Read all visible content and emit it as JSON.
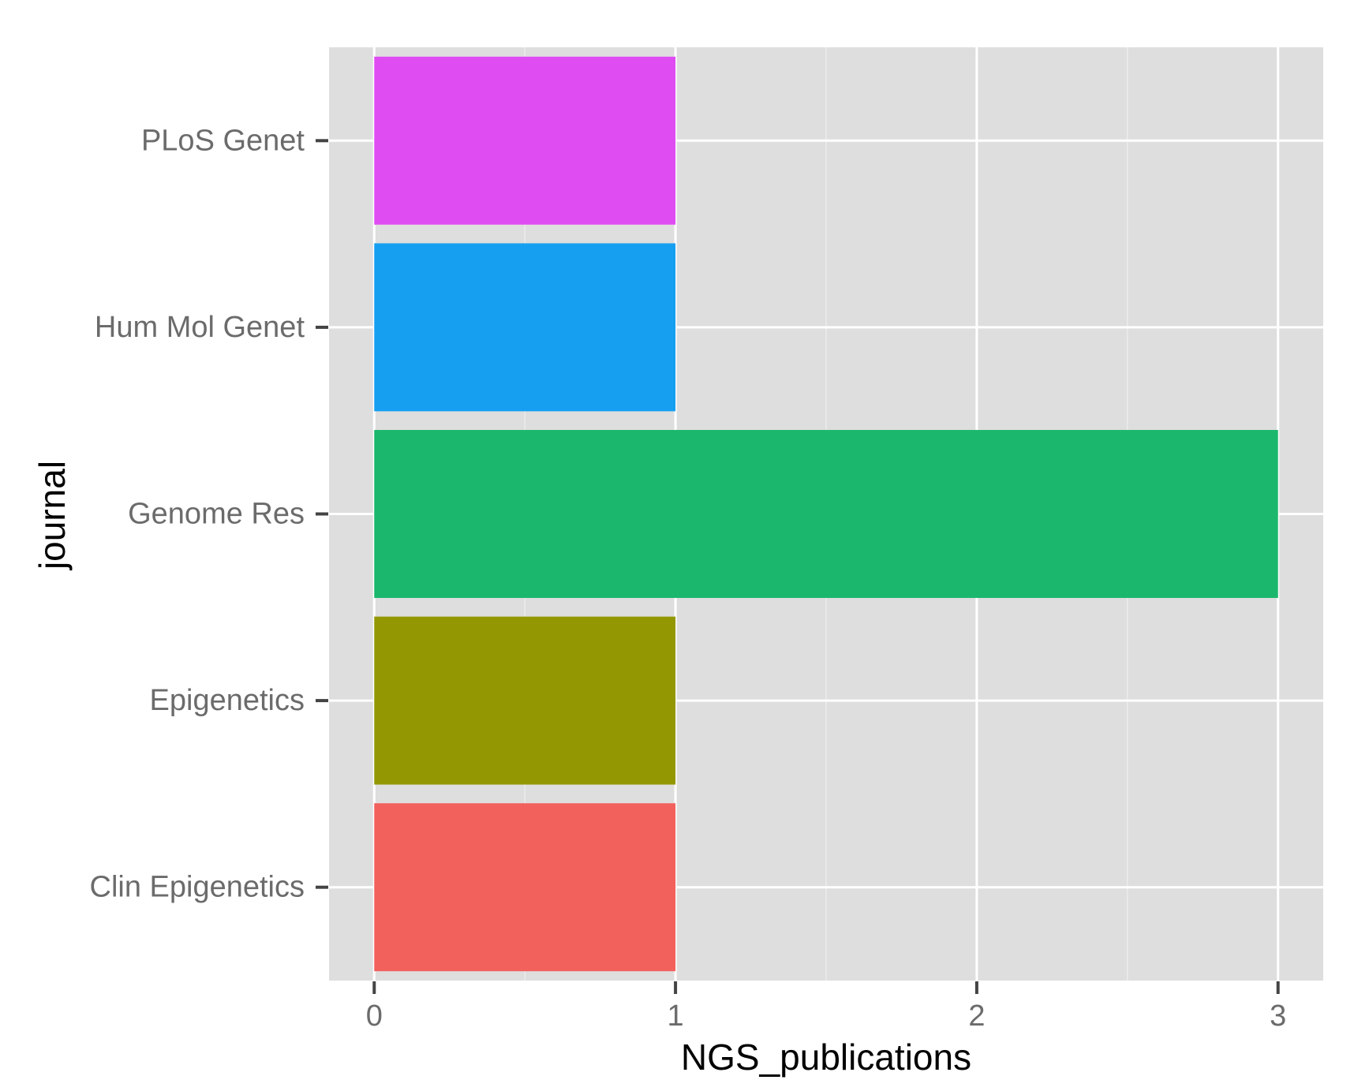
{
  "chart_data": {
    "type": "bar",
    "orientation": "horizontal",
    "xlabel": "NGS_publications",
    "ylabel": "journal",
    "xlim": [
      -0.15,
      3.15
    ],
    "x_ticks": [
      0,
      1,
      2,
      3
    ],
    "x_tick_labels": [
      "0",
      "1",
      "2",
      "3"
    ],
    "categories": [
      "Clin Epigenetics",
      "Epigenetics",
      "Genome Res",
      "Hum Mol Genet",
      "PLoS Genet"
    ],
    "values": [
      1,
      1,
      3,
      1,
      1
    ],
    "colors": [
      "#f2615c",
      "#939802",
      "#1bb76c",
      "#169ff1",
      "#df4cf2"
    ],
    "panel_background": "#dedede",
    "grid": true,
    "legend": "none"
  }
}
